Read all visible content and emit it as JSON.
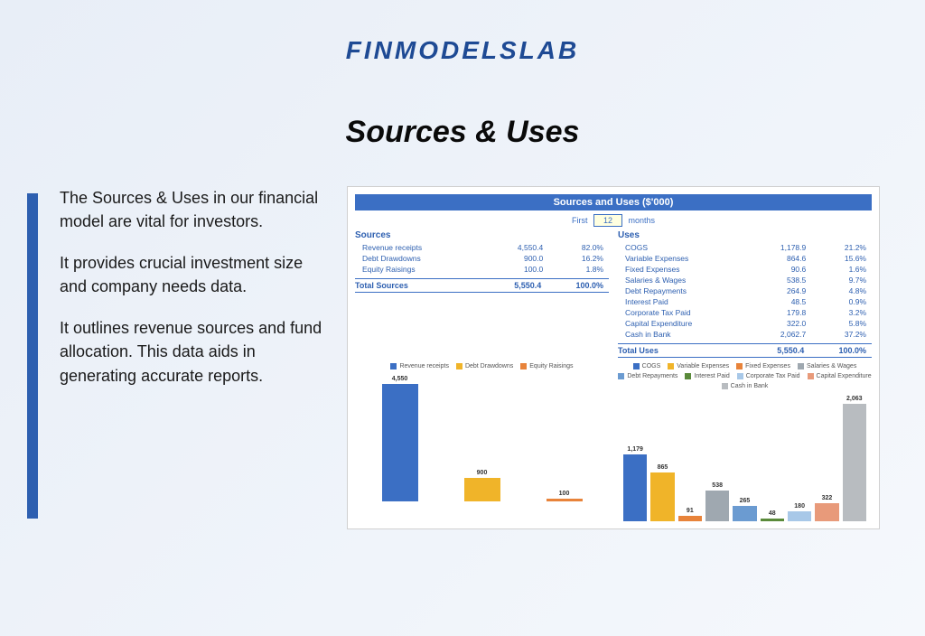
{
  "brand": "FINMODELSLAB",
  "title": "Sources & Uses",
  "paragraphs": [
    "The Sources & Uses in our financial model are vital for investors.",
    "It provides crucial investment size and company needs data.",
    "It outlines revenue sources and fund allocation. This data aids in generating accurate reports."
  ],
  "panel": {
    "title": "Sources and Uses ($'000)",
    "period_prefix": "First",
    "period_value": "12",
    "period_suffix": "months",
    "sources_header": "Sources",
    "uses_header": "Uses",
    "sources": [
      {
        "label": "Revenue receipts",
        "value": "4,550.4",
        "pct": "82.0%"
      },
      {
        "label": "Debt Drawdowns",
        "value": "900.0",
        "pct": "16.2%"
      },
      {
        "label": "Equity Raisings",
        "value": "100.0",
        "pct": "1.8%"
      }
    ],
    "uses": [
      {
        "label": "COGS",
        "value": "1,178.9",
        "pct": "21.2%"
      },
      {
        "label": "Variable Expenses",
        "value": "864.6",
        "pct": "15.6%"
      },
      {
        "label": "Fixed Expenses",
        "value": "90.6",
        "pct": "1.6%"
      },
      {
        "label": "Salaries & Wages",
        "value": "538.5",
        "pct": "9.7%"
      },
      {
        "label": "Debt Repayments",
        "value": "264.9",
        "pct": "4.8%"
      },
      {
        "label": "Interest Paid",
        "value": "48.5",
        "pct": "0.9%"
      },
      {
        "label": "Corporate Tax Paid",
        "value": "179.8",
        "pct": "3.2%"
      },
      {
        "label": "Capital Expenditure",
        "value": "322.0",
        "pct": "5.8%"
      },
      {
        "label": "Cash in Bank",
        "value": "2,062.7",
        "pct": "37.2%"
      }
    ],
    "total_sources": {
      "label": "Total Sources",
      "value": "5,550.4",
      "pct": "100.0%"
    },
    "total_uses": {
      "label": "Total Uses",
      "value": "5,550.4",
      "pct": "100.0%"
    }
  },
  "sources_chart": {
    "type": "bar",
    "max": 4550,
    "legend": [
      {
        "label": "Revenue receipts",
        "color": "#3b6fc4"
      },
      {
        "label": "Debt Drawdowns",
        "color": "#f0b429"
      },
      {
        "label": "Equity Raisings",
        "color": "#e8833a"
      }
    ],
    "bars": [
      {
        "label": "4,550",
        "value": 4550,
        "color": "#3b6fc4"
      },
      {
        "label": "900",
        "value": 900,
        "color": "#f0b429"
      },
      {
        "label": "100",
        "value": 100,
        "color": "#e8833a"
      }
    ]
  },
  "uses_chart": {
    "type": "bar",
    "max": 2063,
    "legend": [
      {
        "label": "COGS",
        "color": "#3b6fc4"
      },
      {
        "label": "Variable Expenses",
        "color": "#f0b429"
      },
      {
        "label": "Fixed Expenses",
        "color": "#e8833a"
      },
      {
        "label": "Salaries & Wages",
        "color": "#9fa8b0"
      },
      {
        "label": "Debt Repayments",
        "color": "#6b9bd1"
      },
      {
        "label": "Interest Paid",
        "color": "#5a8a3a"
      },
      {
        "label": "Corporate Tax Paid",
        "color": "#a8c8e8"
      },
      {
        "label": "Capital Expenditure",
        "color": "#e89a7a"
      },
      {
        "label": "Cash in Bank",
        "color": "#b8bcc0"
      }
    ],
    "bars": [
      {
        "label": "1,179",
        "value": 1179,
        "color": "#3b6fc4"
      },
      {
        "label": "865",
        "value": 865,
        "color": "#f0b429"
      },
      {
        "label": "91",
        "value": 91,
        "color": "#e8833a"
      },
      {
        "label": "538",
        "value": 538,
        "color": "#9fa8b0"
      },
      {
        "label": "265",
        "value": 265,
        "color": "#6b9bd1"
      },
      {
        "label": "48",
        "value": 48,
        "color": "#5a8a3a"
      },
      {
        "label": "180",
        "value": 180,
        "color": "#a8c8e8"
      },
      {
        "label": "322",
        "value": 322,
        "color": "#e89a7a"
      },
      {
        "label": "2,063",
        "value": 2063,
        "color": "#b8bcc0"
      }
    ]
  }
}
